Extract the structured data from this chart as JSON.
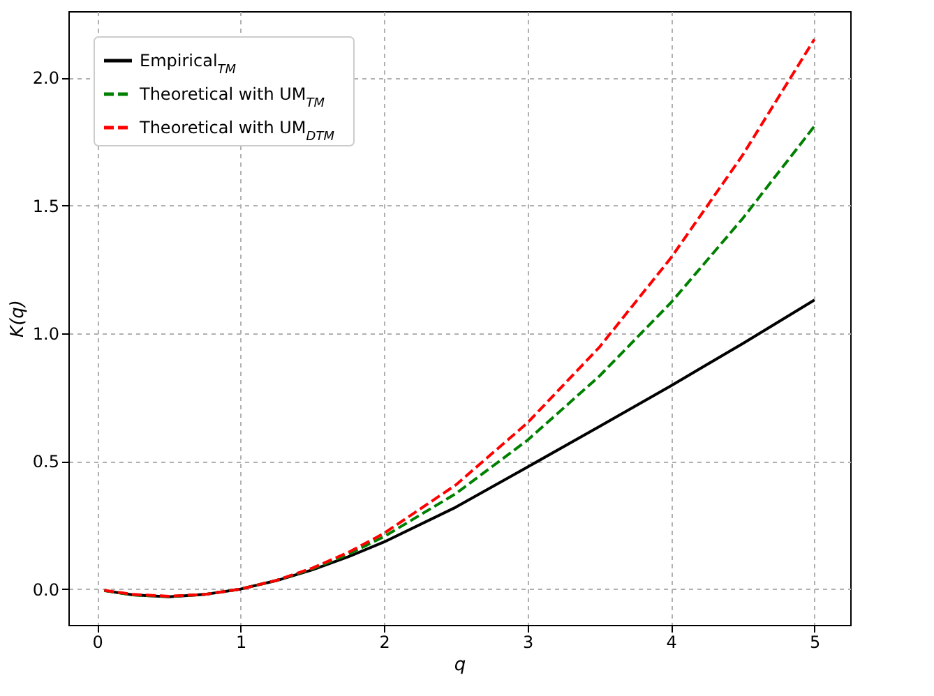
{
  "chart_data": {
    "type": "line",
    "xlabel": "q",
    "ylabel": "K(q)",
    "x": [
      0.05,
      0.25,
      0.5,
      0.75,
      1,
      1.25,
      1.5,
      1.75,
      2,
      2.5,
      3,
      3.5,
      4,
      4.5,
      5
    ],
    "series": [
      {
        "name": "Empirical$_{TM}$",
        "color": "#000000",
        "line_style": "solid",
        "values": [
          -0.006,
          -0.023,
          -0.03,
          -0.021,
          0,
          0.033,
          0.075,
          0.126,
          0.184,
          0.32,
          0.477,
          0.635,
          0.795,
          0.96,
          1.13
        ]
      },
      {
        "name": "Theoretical with UM$_{TM}$",
        "color": "#008000",
        "line_style": "dashed",
        "values": [
          -0.006,
          -0.023,
          -0.029,
          -0.021,
          0,
          0.034,
          0.079,
          0.136,
          0.205,
          0.373,
          0.582,
          0.832,
          1.12,
          1.449,
          1.81
        ]
      },
      {
        "name": "Theoretical with UM$_{DTM}$",
        "color": "#ff0000",
        "line_style": "dashed",
        "values": [
          -0.005,
          -0.021,
          -0.028,
          -0.021,
          0,
          0.034,
          0.082,
          0.143,
          0.218,
          0.407,
          0.65,
          0.945,
          1.295,
          1.697,
          2.15
        ]
      }
    ],
    "xlim": [
      -0.2,
      5.25
    ],
    "ylim": [
      -0.14,
      2.26
    ],
    "xticks": [
      0,
      1,
      2,
      3,
      4,
      5
    ],
    "yticks": [
      {
        "value": 0,
        "label": "0.0"
      },
      {
        "value": 0.5,
        "label": "0.5"
      },
      {
        "value": 1,
        "label": "1.0"
      },
      {
        "value": 1.5,
        "label": "1.5"
      },
      {
        "value": 2,
        "label": "2.0"
      }
    ],
    "grid": true,
    "legend": "top left",
    "marker": "none"
  }
}
